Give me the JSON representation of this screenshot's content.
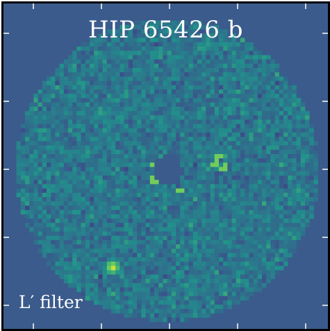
{
  "figure": {
    "title": "HIP 65426 b",
    "filter_label": "L′ filter",
    "colors": {
      "background": "#3b5b8c",
      "colormap": [
        "#440154",
        "#3b528b",
        "#21918c",
        "#5ec962",
        "#fde725"
      ]
    }
  }
}
